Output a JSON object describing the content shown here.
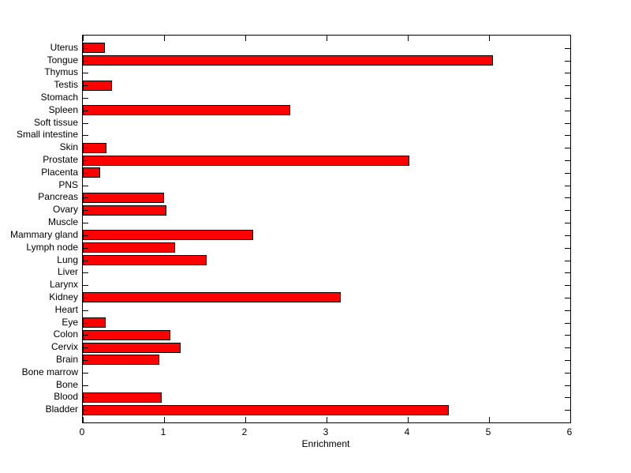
{
  "figure": {
    "background_color": "#ffffff",
    "bar_fill_color": "#ff0000",
    "bar_edge_color": "#000000",
    "axis_color": "#000000",
    "text_color": "#000000"
  },
  "chart_data": {
    "type": "bar",
    "orientation": "horizontal",
    "title": "",
    "xlabel": "Enrichment",
    "ylabel": "",
    "xlim": [
      0,
      6
    ],
    "x_ticks": [
      0,
      1,
      2,
      3,
      4,
      5,
      6
    ],
    "grid": false,
    "legend": null,
    "categories_top_to_bottom": [
      "Uterus",
      "Tongue",
      "Thymus",
      "Testis",
      "Stomach",
      "Spleen",
      "Soft tissue",
      "Small intestine",
      "Skin",
      "Prostate",
      "Placenta",
      "PNS",
      "Pancreas",
      "Ovary",
      "Muscle",
      "Mammary gland",
      "Lymph node",
      "Lung",
      "Liver",
      "Larynx",
      "Kidney",
      "Heart",
      "Eye",
      "Colon",
      "Cervix",
      "Brain",
      "Bone marrow",
      "Bone",
      "Blood",
      "Bladder"
    ],
    "values": [
      0.27,
      5.05,
      0,
      0.36,
      0,
      2.55,
      0,
      0,
      0.29,
      4.02,
      0.21,
      0,
      1.0,
      1.03,
      0,
      2.1,
      1.14,
      1.52,
      0,
      0,
      3.17,
      0,
      0.28,
      1.08,
      1.2,
      0.94,
      0,
      0,
      0.97,
      4.5
    ]
  }
}
